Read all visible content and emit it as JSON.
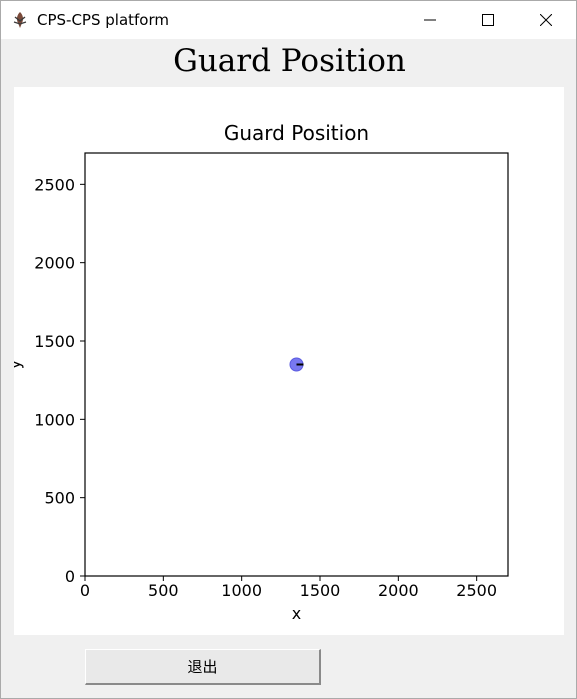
{
  "window": {
    "title": "CPS-CPS platform",
    "app_icon": "feather-quill-icon"
  },
  "heading": "Guard Position",
  "exit_button_label": "退出",
  "chart_data": {
    "type": "scatter",
    "title": "Guard Position",
    "xlabel": "x",
    "ylabel": "y",
    "xlim": [
      0,
      2700
    ],
    "ylim": [
      0,
      2700
    ],
    "xticks": [
      0,
      500,
      1000,
      1500,
      2000,
      2500
    ],
    "yticks": [
      0,
      500,
      1000,
      1500,
      2000,
      2500
    ],
    "grid": false,
    "points": [
      {
        "x": 1350,
        "y": 1350,
        "color": "#7878f0",
        "heading_marker": true
      }
    ]
  }
}
